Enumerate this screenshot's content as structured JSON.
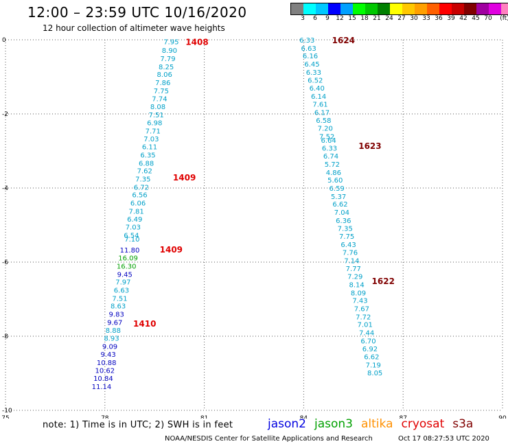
{
  "header": {
    "title": "12:00 – 23:59 UTC 10/16/2020",
    "subtitle": "12 hour collection of altimeter wave heights"
  },
  "legend": {
    "colors": [
      "#808080",
      "#00ffff",
      "#00c8ff",
      "#0000ff",
      "#00a0ff",
      "#00ff00",
      "#00c800",
      "#008000",
      "#ffff00",
      "#ffc800",
      "#ffa000",
      "#ff6000",
      "#ff0000",
      "#c80000",
      "#800000",
      "#a000a0",
      "#e000e0",
      "#ff80c0",
      "#000000"
    ],
    "labels": [
      "3",
      "6",
      "9",
      "12",
      "15",
      "18",
      "21",
      "24",
      "27",
      "30",
      "33",
      "36",
      "39",
      "42",
      "45",
      "70",
      "(ft)"
    ]
  },
  "chart_data": {
    "type": "scatter",
    "xlim": [
      75,
      90
    ],
    "ylim": [
      -10,
      0
    ],
    "xticks": [
      "75",
      "78",
      "81",
      "84",
      "87",
      "90"
    ],
    "yticks": [
      "0",
      "-2",
      "-4",
      "-6",
      "-8",
      "-10"
    ],
    "grid": true,
    "tracks": [
      {
        "color": "#00a0c8",
        "points": [
          {
            "x": 80.0,
            "y": -0.05,
            "v": "7.95"
          },
          {
            "x": 79.95,
            "y": -0.28,
            "v": "8.90"
          },
          {
            "x": 79.9,
            "y": -0.5,
            "v": "7.79"
          },
          {
            "x": 79.85,
            "y": -0.72,
            "v": "8.25"
          },
          {
            "x": 79.8,
            "y": -0.93,
            "v": "8.06"
          },
          {
            "x": 79.75,
            "y": -1.15,
            "v": "7.86"
          },
          {
            "x": 79.7,
            "y": -1.37,
            "v": "7.75"
          },
          {
            "x": 79.65,
            "y": -1.58,
            "v": "7.74"
          },
          {
            "x": 79.6,
            "y": -1.8,
            "v": "8.08"
          },
          {
            "x": 79.55,
            "y": -2.02,
            "v": "7.51"
          },
          {
            "x": 79.5,
            "y": -2.23,
            "v": "6.98"
          },
          {
            "x": 79.45,
            "y": -2.45,
            "v": "7.71"
          },
          {
            "x": 79.4,
            "y": -2.67,
            "v": "7.03"
          },
          {
            "x": 79.35,
            "y": -2.88,
            "v": "6.11"
          },
          {
            "x": 79.3,
            "y": -3.1,
            "v": "6.35"
          },
          {
            "x": 79.25,
            "y": -3.32,
            "v": "6.88"
          },
          {
            "x": 79.2,
            "y": -3.53,
            "v": "7.62"
          },
          {
            "x": 79.15,
            "y": -3.75,
            "v": "7.35"
          },
          {
            "x": 79.1,
            "y": -3.97,
            "v": "6.72"
          },
          {
            "x": 79.05,
            "y": -4.18,
            "v": "6.56"
          },
          {
            "x": 79.0,
            "y": -4.4,
            "v": "6.06"
          },
          {
            "x": 78.95,
            "y": -4.62,
            "v": "7.81"
          },
          {
            "x": 78.9,
            "y": -4.83,
            "v": "6.49"
          },
          {
            "x": 78.85,
            "y": -5.05,
            "v": "7.03"
          },
          {
            "x": 78.8,
            "y": -5.27,
            "v": "6.54"
          },
          {
            "x": 78.82,
            "y": -5.37,
            "v": "7.10"
          }
        ]
      },
      {
        "color": "#0000c0",
        "points": [
          {
            "x": 78.75,
            "y": -5.67,
            "v": "11.80"
          }
        ]
      },
      {
        "color": "#00a000",
        "points": [
          {
            "x": 78.7,
            "y": -5.88,
            "v": "16.09"
          },
          {
            "x": 78.65,
            "y": -6.1,
            "v": "16.30"
          }
        ]
      },
      {
        "color": "#0000c0",
        "points": [
          {
            "x": 78.6,
            "y": -6.32,
            "v": "9.45"
          }
        ]
      },
      {
        "color": "#00a0c8",
        "points": [
          {
            "x": 78.55,
            "y": -6.53,
            "v": "7.97"
          },
          {
            "x": 78.5,
            "y": -6.75,
            "v": "6.63"
          },
          {
            "x": 78.45,
            "y": -6.97,
            "v": "7.51"
          },
          {
            "x": 78.4,
            "y": -7.18,
            "v": "8.63"
          }
        ]
      },
      {
        "color": "#0000c0",
        "points": [
          {
            "x": 78.35,
            "y": -7.4,
            "v": "9.83"
          },
          {
            "x": 78.3,
            "y": -7.62,
            "v": "9.67"
          }
        ]
      },
      {
        "color": "#00a0c8",
        "points": [
          {
            "x": 78.25,
            "y": -7.83,
            "v": "8.88"
          },
          {
            "x": 78.2,
            "y": -8.05,
            "v": "8.93"
          }
        ]
      },
      {
        "color": "#0000c0",
        "points": [
          {
            "x": 78.15,
            "y": -8.27,
            "v": "9.09"
          },
          {
            "x": 78.1,
            "y": -8.48,
            "v": "9.43"
          },
          {
            "x": 78.05,
            "y": -8.7,
            "v": "10.88"
          },
          {
            "x": 78.0,
            "y": -8.92,
            "v": "10.62"
          },
          {
            "x": 77.95,
            "y": -9.13,
            "v": "10.84"
          },
          {
            "x": 77.9,
            "y": -9.35,
            "v": "11.14"
          }
        ]
      },
      {
        "color": "#00a0c8",
        "points": [
          {
            "x": 84.1,
            "y": 0.0,
            "v": "6.33"
          },
          {
            "x": 84.15,
            "y": -0.22,
            "v": "6.63"
          },
          {
            "x": 84.2,
            "y": -0.43,
            "v": "6.16"
          },
          {
            "x": 84.25,
            "y": -0.65,
            "v": "6.45"
          },
          {
            "x": 84.3,
            "y": -0.87,
            "v": "6.33"
          },
          {
            "x": 84.35,
            "y": -1.08,
            "v": "6.52"
          },
          {
            "x": 84.4,
            "y": -1.3,
            "v": "6.40"
          },
          {
            "x": 84.45,
            "y": -1.52,
            "v": "6.14"
          },
          {
            "x": 84.5,
            "y": -1.73,
            "v": "7.61"
          },
          {
            "x": 84.55,
            "y": -1.95,
            "v": "6.17"
          },
          {
            "x": 84.6,
            "y": -2.17,
            "v": "6.58"
          },
          {
            "x": 84.65,
            "y": -2.38,
            "v": "7.20"
          },
          {
            "x": 84.7,
            "y": -2.6,
            "v": "7.52"
          },
          {
            "x": 84.75,
            "y": -2.7,
            "v": "6.64"
          },
          {
            "x": 84.78,
            "y": -2.92,
            "v": "6.33"
          },
          {
            "x": 84.82,
            "y": -3.13,
            "v": "6.74"
          },
          {
            "x": 84.86,
            "y": -3.35,
            "v": "5.72"
          },
          {
            "x": 84.9,
            "y": -3.57,
            "v": "4.86"
          },
          {
            "x": 84.95,
            "y": -3.78,
            "v": "5.60"
          },
          {
            "x": 85.0,
            "y": -4.0,
            "v": "6.59"
          },
          {
            "x": 85.05,
            "y": -4.22,
            "v": "5.37"
          },
          {
            "x": 85.1,
            "y": -4.43,
            "v": "6.62"
          },
          {
            "x": 85.15,
            "y": -4.65,
            "v": "7.04"
          },
          {
            "x": 85.2,
            "y": -4.87,
            "v": "6.36"
          },
          {
            "x": 85.25,
            "y": -5.08,
            "v": "7.35"
          },
          {
            "x": 85.3,
            "y": -5.3,
            "v": "7.75"
          },
          {
            "x": 85.35,
            "y": -5.52,
            "v": "6.43"
          },
          {
            "x": 85.4,
            "y": -5.73,
            "v": "7.76"
          },
          {
            "x": 85.45,
            "y": -5.95,
            "v": "7.14"
          },
          {
            "x": 85.5,
            "y": -6.17,
            "v": "7.77"
          },
          {
            "x": 85.55,
            "y": -6.38,
            "v": "7.29"
          },
          {
            "x": 85.6,
            "y": -6.6,
            "v": "8.14"
          },
          {
            "x": 85.65,
            "y": -6.82,
            "v": "8.09"
          },
          {
            "x": 85.7,
            "y": -7.03,
            "v": "7.43"
          },
          {
            "x": 85.75,
            "y": -7.25,
            "v": "7.67"
          },
          {
            "x": 85.8,
            "y": -7.47,
            "v": "7.72"
          },
          {
            "x": 85.85,
            "y": -7.68,
            "v": "7.01"
          },
          {
            "x": 85.9,
            "y": -7.9,
            "v": "7.44"
          },
          {
            "x": 85.95,
            "y": -8.12,
            "v": "6.70"
          },
          {
            "x": 86.0,
            "y": -8.33,
            "v": "6.92"
          },
          {
            "x": 86.05,
            "y": -8.55,
            "v": "6.62"
          },
          {
            "x": 86.1,
            "y": -8.77,
            "v": "7.19"
          },
          {
            "x": 86.15,
            "y": -8.98,
            "v": "8.05"
          }
        ]
      }
    ],
    "time_labels": [
      {
        "x": 80.78,
        "y": -0.05,
        "t": "1408",
        "color": "#e00000"
      },
      {
        "x": 80.4,
        "y": -3.7,
        "t": "1409",
        "color": "#e00000"
      },
      {
        "x": 80.0,
        "y": -5.65,
        "t": "1409",
        "color": "#e00000"
      },
      {
        "x": 79.2,
        "y": -7.65,
        "t": "1410",
        "color": "#e00000"
      },
      {
        "x": 85.2,
        "y": 0.0,
        "t": "1624",
        "color": "#800000"
      },
      {
        "x": 86.0,
        "y": -2.85,
        "t": "1623",
        "color": "#800000"
      },
      {
        "x": 86.4,
        "y": -6.5,
        "t": "1622",
        "color": "#800000"
      }
    ]
  },
  "footer": {
    "note": "note: 1) Time is in UTC; 2) SWH is in feet",
    "missions": [
      {
        "name": "jason2",
        "color": "#0000e0"
      },
      {
        "name": "jason3",
        "color": "#00a000"
      },
      {
        "name": "altika",
        "color": "#ff9000"
      },
      {
        "name": "cryosat",
        "color": "#e00000"
      },
      {
        "name": "s3a",
        "color": "#800000"
      }
    ],
    "credit": "NOAA/NESDIS Center for Satellite Applications and Research",
    "timestamp": "Oct 17 08:27:53 UTC 2020"
  }
}
